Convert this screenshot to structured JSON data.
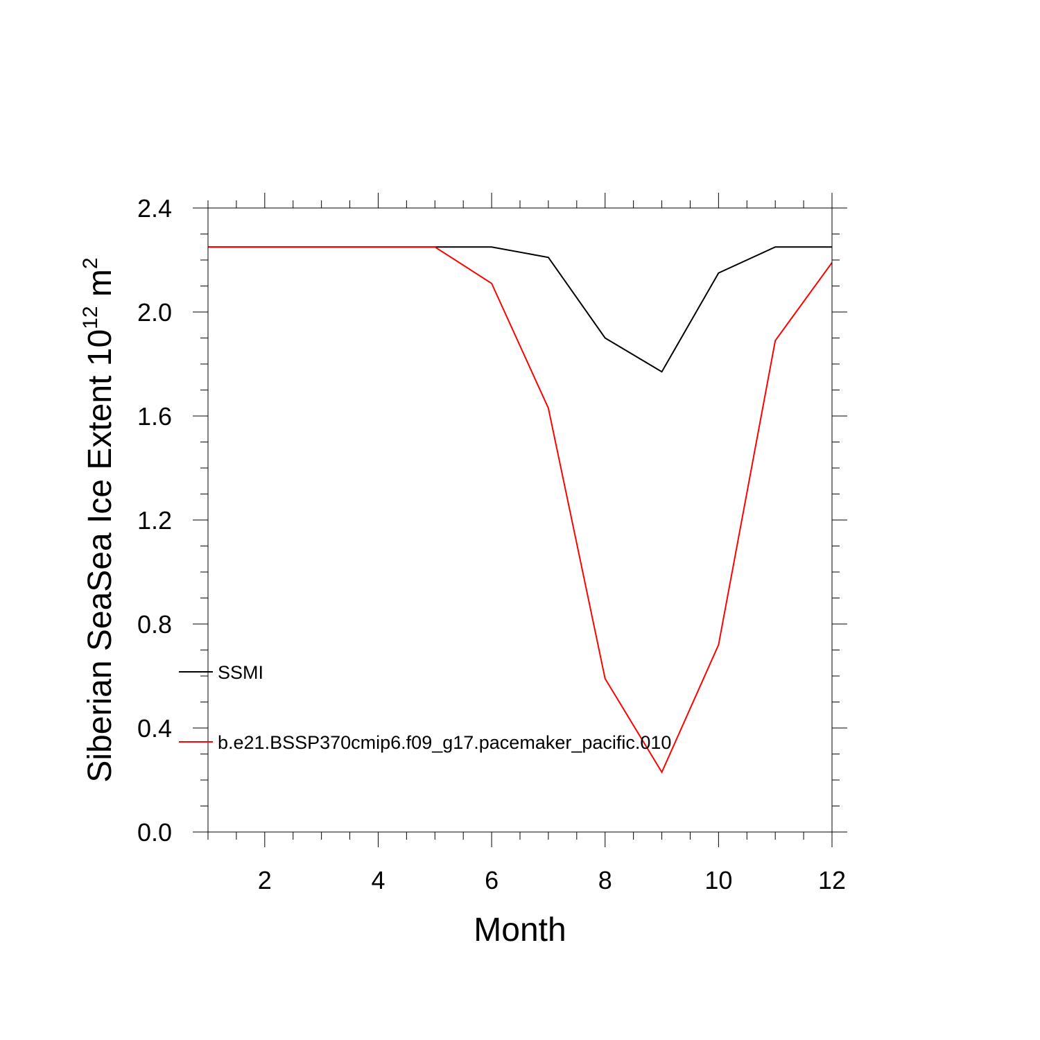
{
  "chart_data": {
    "type": "line",
    "title": "",
    "xlabel": "Month",
    "ylabel": {
      "base": "Siberian SeaSea Ice Extent 10",
      "exp1": "12",
      "mid": " m",
      "exp2": "2"
    },
    "xlim": [
      1,
      12
    ],
    "ylim": [
      0,
      2.4
    ],
    "xticks": [
      2,
      4,
      6,
      8,
      10,
      12
    ],
    "xtick_labels": [
      "2",
      "4",
      "6",
      "8",
      "10",
      "12"
    ],
    "yticks": [
      0,
      0.4,
      0.8,
      1.2,
      1.6,
      2.0,
      2.4
    ],
    "ytick_labels": [
      "0.0",
      "0.4",
      "0.8",
      "1.2",
      "1.6",
      "2.0",
      "2.4"
    ],
    "grid": false,
    "legend_position": "left-middle",
    "x": [
      1,
      2,
      3,
      4,
      5,
      6,
      7,
      8,
      9,
      10,
      11,
      12
    ],
    "series": [
      {
        "name": "SSMI",
        "color": "#000000",
        "values": [
          2.25,
          2.25,
          2.25,
          2.25,
          2.25,
          2.25,
          2.21,
          1.9,
          1.77,
          2.15,
          2.25,
          2.25
        ]
      },
      {
        "name": "b.e21.BSSP370cmip6.f09_g17.pacemaker_pacific.010",
        "color": "#ff0000",
        "values": [
          2.25,
          2.25,
          2.25,
          2.25,
          2.25,
          2.11,
          1.63,
          0.59,
          0.23,
          0.72,
          1.89,
          2.19
        ]
      }
    ]
  }
}
